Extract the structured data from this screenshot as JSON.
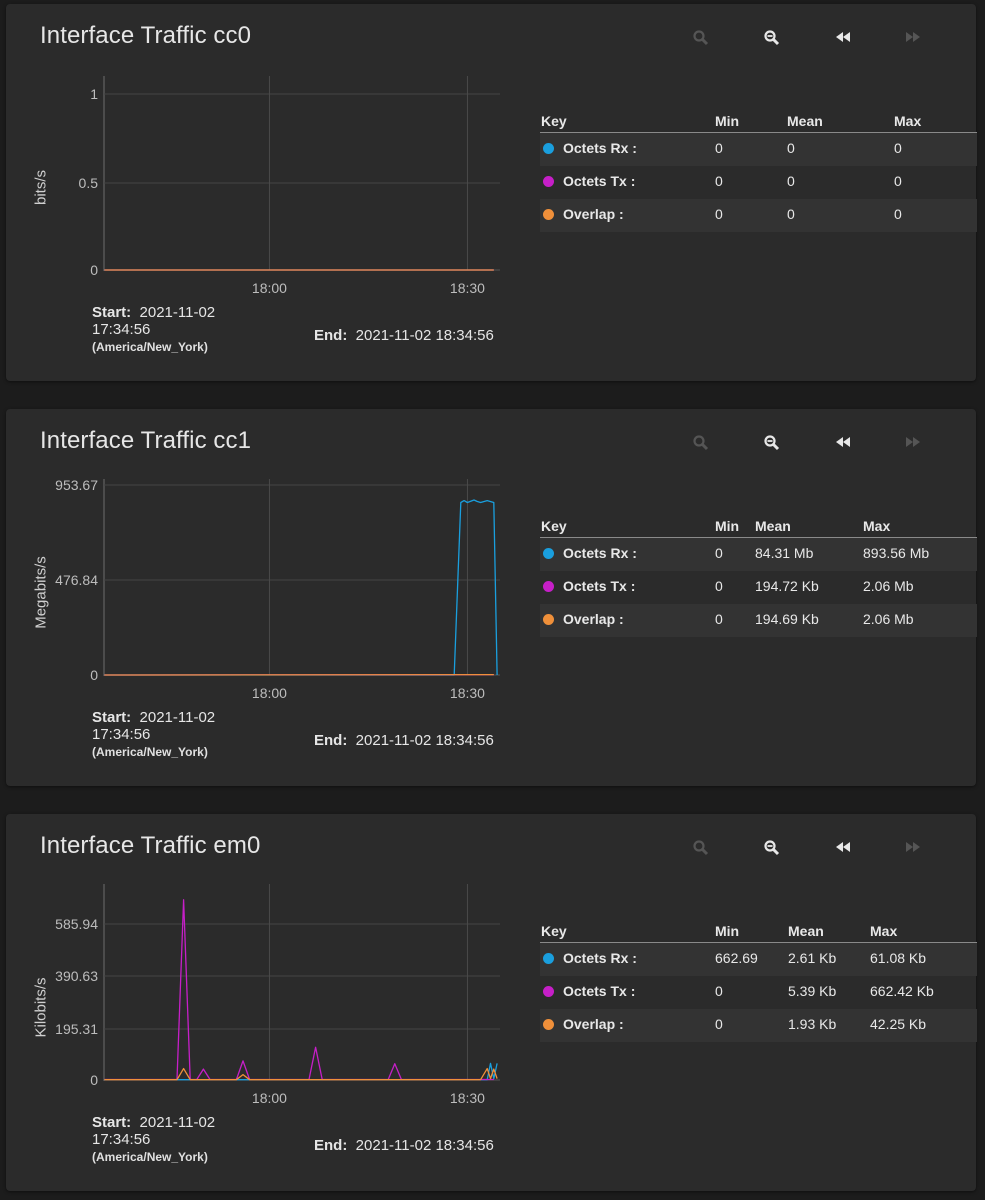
{
  "colors": {
    "rx": "#1a9fde",
    "tx": "#c61fc8",
    "overlap": "#f0903a"
  },
  "icons": [
    "zoom-in-icon",
    "zoom-out-icon",
    "rewind-icon",
    "fast-forward-icon"
  ],
  "panels": [
    {
      "title": "Interface Traffic cc0",
      "ylabel": "bits/s",
      "start_label": "Start:",
      "start_date": "2021-11-02",
      "start_time": "17:34:56",
      "timezone": "(America/New_York)",
      "end_label": "End:",
      "end_value": "2021-11-02 18:34:56",
      "legend": {
        "headers": [
          "Key",
          "Min",
          "Mean",
          "Max"
        ],
        "rows": [
          {
            "name": "Octets Rx :",
            "min": "0",
            "mean": "0",
            "max": "0"
          },
          {
            "name": "Octets Tx :",
            "min": "0",
            "mean": "0",
            "max": "0"
          },
          {
            "name": "Overlap :",
            "min": "0",
            "mean": "0",
            "max": "0"
          }
        ]
      },
      "chart_data": {
        "type": "line",
        "xlabel": "",
        "ylabel": "bits/s",
        "x_start": "17:34:56",
        "x_end": "18:34:56",
        "x_ticks": [
          "18:00",
          "18:30"
        ],
        "y_ticks": [
          "1",
          "0.5",
          "0"
        ],
        "ylim": [
          0,
          1
        ],
        "series": [
          {
            "name": "Octets Rx",
            "x": [
              "17:35",
              "18:34"
            ],
            "y": [
              0,
              0
            ]
          },
          {
            "name": "Octets Tx",
            "x": [
              "17:35",
              "18:34"
            ],
            "y": [
              0,
              0
            ]
          },
          {
            "name": "Overlap",
            "x": [
              "17:35",
              "18:34"
            ],
            "y": [
              0,
              0
            ]
          }
        ],
        "grid": true
      }
    },
    {
      "title": "Interface Traffic cc1",
      "ylabel": "Megabits/s",
      "start_label": "Start:",
      "start_date": "2021-11-02",
      "start_time": "17:34:56",
      "timezone": "(America/New_York)",
      "end_label": "End:",
      "end_value": "2021-11-02 18:34:56",
      "legend": {
        "headers": [
          "Key",
          "Min",
          "Mean",
          "Max"
        ],
        "rows": [
          {
            "name": "Octets Rx :",
            "min": "0",
            "mean": "84.31 Mb",
            "max": "893.56 Mb"
          },
          {
            "name": "Octets Tx :",
            "min": "0",
            "mean": "194.72 Kb",
            "max": "2.06 Mb"
          },
          {
            "name": "Overlap :",
            "min": "0",
            "mean": "194.69 Kb",
            "max": "2.06 Mb"
          }
        ]
      },
      "chart_data": {
        "type": "line",
        "xlabel": "",
        "ylabel": "Megabits/s",
        "x_start": "17:34:56",
        "x_end": "18:34:56",
        "x_ticks": [
          "18:00",
          "18:30"
        ],
        "y_ticks": [
          "953.67",
          "476.84",
          "0"
        ],
        "ylim": [
          0,
          1000
        ],
        "series": [
          {
            "name": "Octets Rx",
            "x": [
              "17:35",
              "18:28",
              "18:29",
              "18:29:30",
              "18:30",
              "18:31",
              "18:31:30",
              "18:32",
              "18:33",
              "18:34",
              "18:34:30"
            ],
            "y": [
              0,
              0,
              880,
              890,
              880,
              893,
              885,
              880,
              890,
              880,
              0
            ]
          },
          {
            "name": "Octets Tx",
            "x": [
              "17:35",
              "18:34"
            ],
            "y": [
              0,
              2
            ]
          },
          {
            "name": "Overlap",
            "x": [
              "17:35",
              "18:34"
            ],
            "y": [
              0,
              2
            ]
          }
        ],
        "grid": true
      }
    },
    {
      "title": "Interface Traffic em0",
      "ylabel": "Kilobits/s",
      "start_label": "Start:",
      "start_date": "2021-11-02",
      "start_time": "17:34:56",
      "timezone": "(America/New_York)",
      "end_label": "End:",
      "end_value": "2021-11-02 18:34:56",
      "legend": {
        "headers": [
          "Key",
          "Min",
          "Mean",
          "Max"
        ],
        "rows": [
          {
            "name": "Octets Rx :",
            "min": "662.69",
            "mean": "2.61 Kb",
            "max": "61.08 Kb"
          },
          {
            "name": "Octets Tx :",
            "min": "0",
            "mean": "5.39 Kb",
            "max": "662.42 Kb"
          },
          {
            "name": "Overlap :",
            "min": "0",
            "mean": "1.93 Kb",
            "max": "42.25 Kb"
          }
        ]
      },
      "chart_data": {
        "type": "line",
        "xlabel": "",
        "ylabel": "Kilobits/s",
        "x_start": "17:34:56",
        "x_end": "18:34:56",
        "x_ticks": [
          "18:00",
          "18:30"
        ],
        "y_ticks": [
          "585.94",
          "390.63",
          "195.31",
          "0"
        ],
        "ylim": [
          0,
          720
        ],
        "series": [
          {
            "name": "Octets Rx",
            "x": [
              "17:35",
              "18:33",
              "18:33:30",
              "18:34",
              "18:34:30"
            ],
            "y": [
              1,
              1,
              61,
              5,
              61
            ]
          },
          {
            "name": "Octets Tx",
            "x": [
              "17:35",
              "17:46",
              "17:47",
              "17:48",
              "17:49",
              "17:50",
              "17:51",
              "17:55",
              "17:56",
              "17:57",
              "18:06",
              "18:07",
              "18:08",
              "18:18",
              "18:19",
              "18:20",
              "18:34"
            ],
            "y": [
              2,
              2,
              662,
              2,
              2,
              40,
              2,
              2,
              70,
              2,
              2,
              120,
              2,
              2,
              60,
              2,
              2
            ]
          },
          {
            "name": "Overlap",
            "x": [
              "17:35",
              "17:46",
              "17:47",
              "17:48",
              "17:55",
              "17:56",
              "17:57",
              "18:32",
              "18:33",
              "18:33:30",
              "18:34",
              "18:34:30"
            ],
            "y": [
              1,
              1,
              42,
              1,
              1,
              20,
              1,
              1,
              42,
              5,
              40,
              5
            ]
          }
        ],
        "grid": true
      }
    }
  ]
}
